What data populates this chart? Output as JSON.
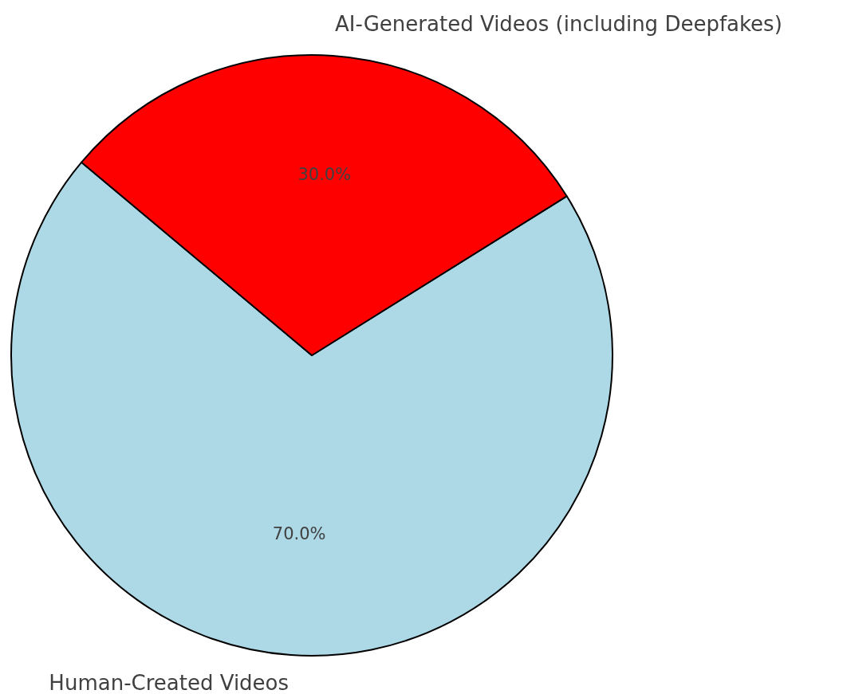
{
  "chart_data": {
    "type": "pie",
    "categories": [
      "Human-Created Videos",
      "AI-Generated Videos (including Deepfakes)"
    ],
    "values": [
      70,
      30
    ],
    "colors": [
      "#add8e6",
      "#ff0000"
    ],
    "value_labels": [
      "70.0%",
      "30.0%"
    ],
    "legend": false
  }
}
